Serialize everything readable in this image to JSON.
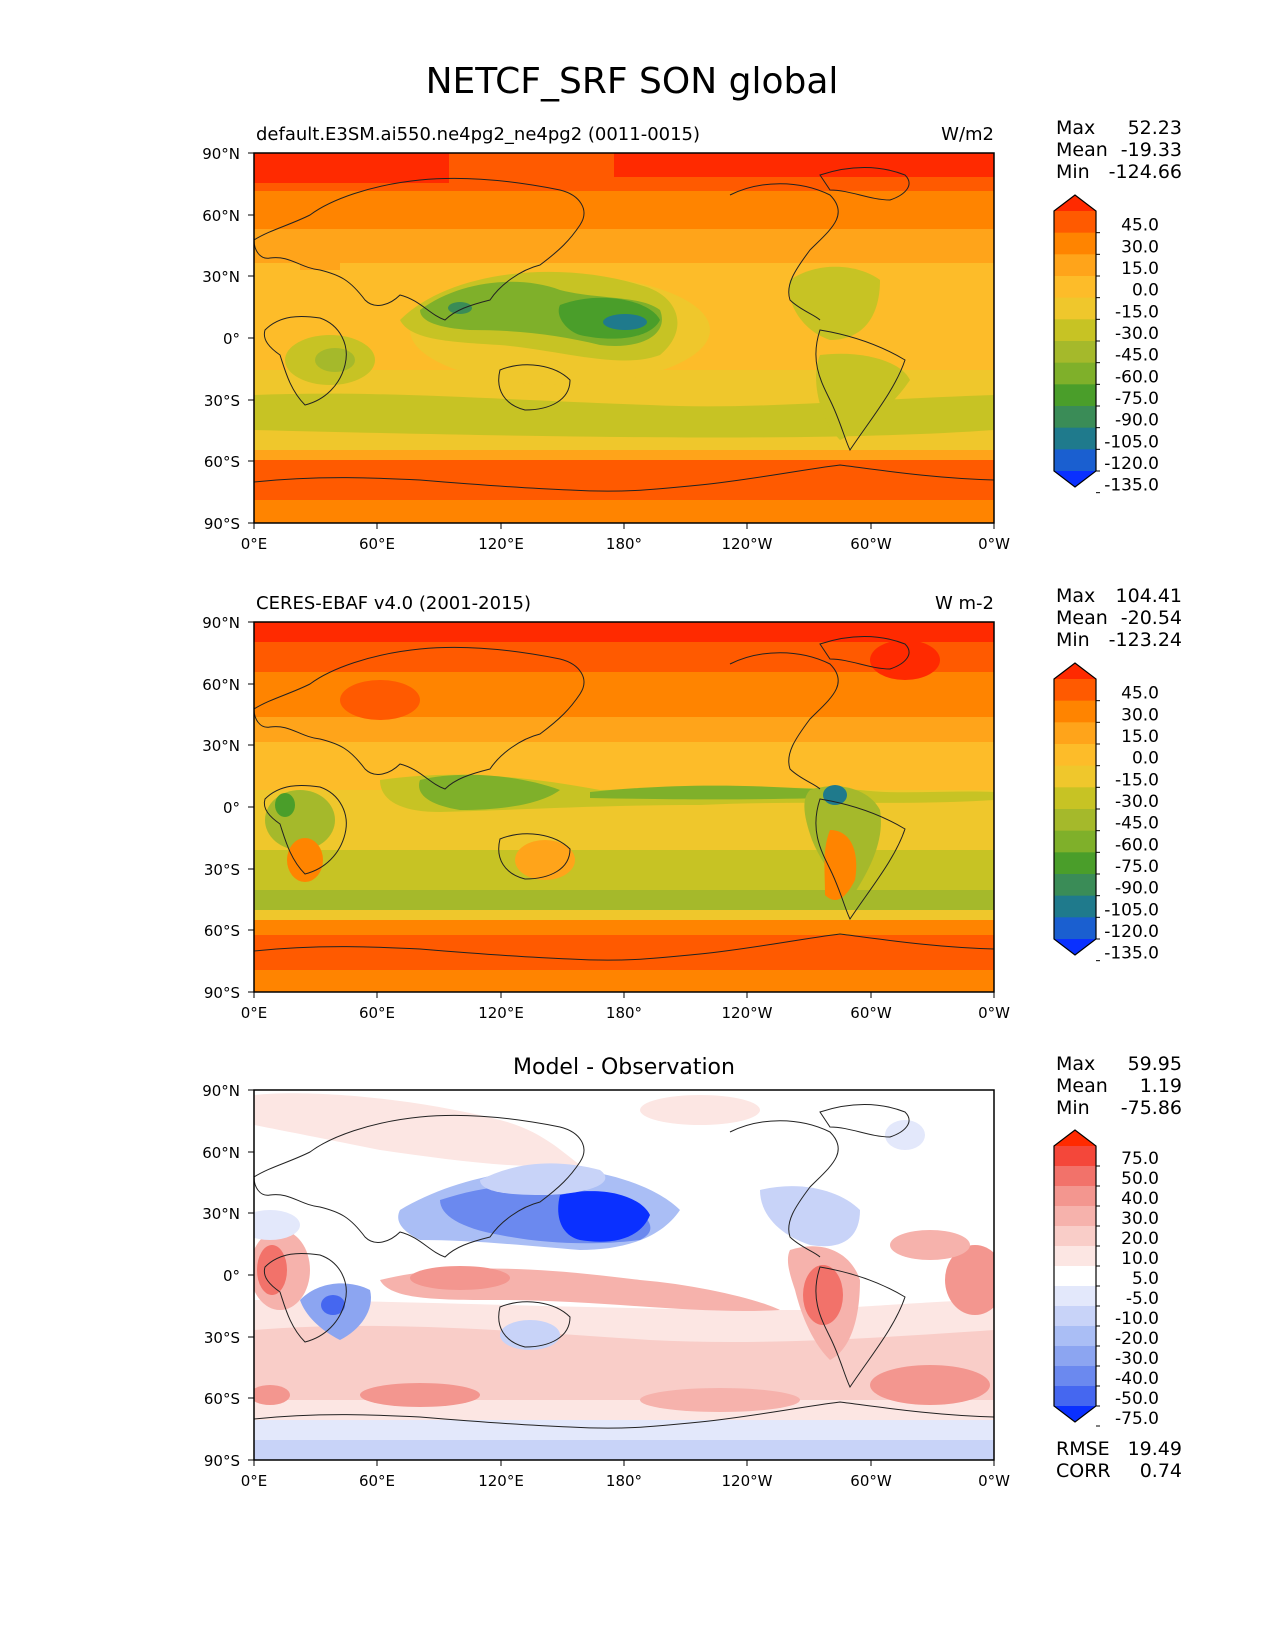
{
  "title": "NETCF_SRF SON global",
  "x_ticks": [
    "0°E",
    "60°E",
    "120°E",
    "180°",
    "120°W",
    "60°W",
    "0°W"
  ],
  "y_ticks": [
    "90°N",
    "60°N",
    "30°N",
    "0°",
    "30°S",
    "60°S",
    "90°S"
  ],
  "panels": [
    {
      "id": "model",
      "title_left": "default.E3SM.ai550.ne4pg2_ne4pg2 (0011-0015)",
      "title_center": "",
      "title_right": "W/m2",
      "stats": [
        {
          "label": "Max",
          "value": "52.23"
        },
        {
          "label": "Mean",
          "value": "-19.33"
        },
        {
          "label": "Min",
          "value": "-124.66"
        }
      ],
      "colorbar": {
        "colors": [
          "#ff2a00",
          "#ff5a00",
          "#ff8400",
          "#ffa41a",
          "#fdbc29",
          "#efc72c",
          "#c7c324",
          "#a5b92b",
          "#7fb02a",
          "#4a9e2a",
          "#3a8c57",
          "#1f7a8c",
          "#1a5fd0",
          "#0a30ff"
        ],
        "labels": [
          "45.0",
          "30.0",
          "15.0",
          "0.0",
          "-15.0",
          "-30.0",
          "-45.0",
          "-60.0",
          "-75.0",
          "-90.0",
          "-105.0",
          "-120.0",
          "-135.0"
        ]
      },
      "extra_stats": []
    },
    {
      "id": "obs",
      "title_left": "CERES-EBAF v4.0 (2001-2015)",
      "title_center": "",
      "title_right": "W m-2",
      "stats": [
        {
          "label": "Max",
          "value": "104.41"
        },
        {
          "label": "Mean",
          "value": "-20.54"
        },
        {
          "label": "Min",
          "value": "-123.24"
        }
      ],
      "colorbar": {
        "colors": [
          "#ff2a00",
          "#ff5a00",
          "#ff8400",
          "#ffa41a",
          "#fdbc29",
          "#efc72c",
          "#c7c324",
          "#a5b92b",
          "#7fb02a",
          "#4a9e2a",
          "#3a8c57",
          "#1f7a8c",
          "#1a5fd0",
          "#0a30ff"
        ],
        "labels": [
          "45.0",
          "30.0",
          "15.0",
          "0.0",
          "-15.0",
          "-30.0",
          "-45.0",
          "-60.0",
          "-75.0",
          "-90.0",
          "-105.0",
          "-120.0",
          "-135.0"
        ]
      },
      "extra_stats": []
    },
    {
      "id": "diff",
      "title_left": "",
      "title_center": "Model - Observation",
      "title_right": "",
      "stats": [
        {
          "label": "Max",
          "value": "59.95"
        },
        {
          "label": "Mean",
          "value": "1.19"
        },
        {
          "label": "Min",
          "value": "-75.86"
        }
      ],
      "colorbar": {
        "colors": [
          "#ff2a00",
          "#f4473a",
          "#f2726a",
          "#f3968f",
          "#f6b2ac",
          "#f9cdc8",
          "#fce6e3",
          "#ffffff",
          "#e3e8fb",
          "#c8d3f8",
          "#aabef5",
          "#8ca5f1",
          "#6b89ef",
          "#4567f0",
          "#0a30ff"
        ],
        "labels": [
          "75.0",
          "50.0",
          "40.0",
          "30.0",
          "20.0",
          "10.0",
          "5.0",
          "-5.0",
          "-10.0",
          "-20.0",
          "-30.0",
          "-40.0",
          "-50.0",
          "-75.0"
        ]
      },
      "extra_stats": [
        {
          "label": "RMSE",
          "value": "19.49"
        },
        {
          "label": "CORR",
          "value": "0.74"
        }
      ]
    }
  ]
}
